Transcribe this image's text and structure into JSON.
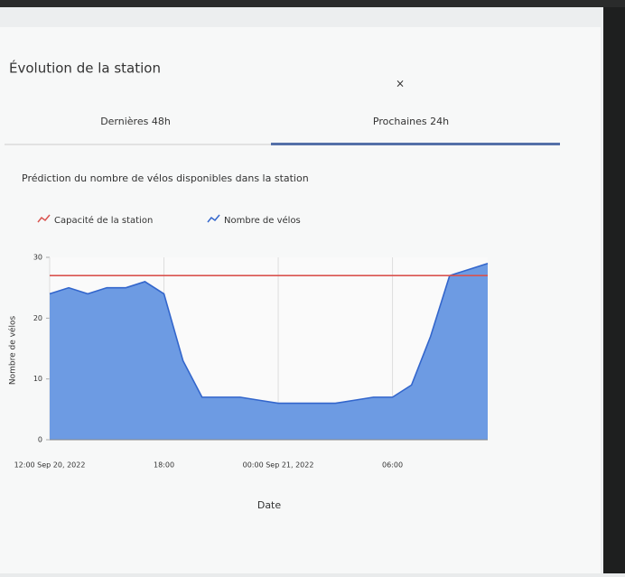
{
  "header": {
    "title": "Évolution de la station"
  },
  "tabs": [
    "Dernières 48h",
    "Prochaines 24h"
  ],
  "active_tab": 1,
  "chart_data": {
    "type": "area",
    "subtitle": "Prédiction du nombre de vélos disponibles dans la station",
    "xlabel": "Date",
    "ylabel": "Nombre de vélos",
    "x": [
      0,
      1,
      2,
      3,
      4,
      5,
      6,
      7,
      8,
      9,
      10,
      11,
      12,
      13,
      14,
      15,
      16,
      17,
      18,
      19,
      20,
      21,
      22,
      23
    ],
    "series": [
      {
        "name": "Capacité de la station",
        "color": "#d9534f",
        "fill": false,
        "values": [
          27,
          27,
          27,
          27,
          27,
          27,
          27,
          27,
          27,
          27,
          27,
          27,
          27,
          27,
          27,
          27,
          27,
          27,
          27,
          27,
          27,
          27,
          27,
          27
        ]
      },
      {
        "name": "Nombre de vélos",
        "color": "#3366cc",
        "fill": true,
        "values": [
          24,
          25,
          24,
          25,
          25,
          26,
          24,
          13,
          7,
          7,
          7,
          6.5,
          6,
          6,
          6,
          6,
          6.5,
          7,
          7,
          9,
          17,
          27,
          28,
          29
        ]
      }
    ],
    "xlim": [
      0,
      23
    ],
    "ylim": [
      0,
      30
    ],
    "yticks": [
      0,
      10,
      20,
      30
    ],
    "xticks": [
      {
        "value": 0,
        "label": "12:00 Sep 20, 2022"
      },
      {
        "value": 6,
        "label": "18:00"
      },
      {
        "value": 12,
        "label": "00:00 Sep 21, 2022"
      },
      {
        "value": 18,
        "label": "06:00"
      }
    ],
    "grid": true
  }
}
